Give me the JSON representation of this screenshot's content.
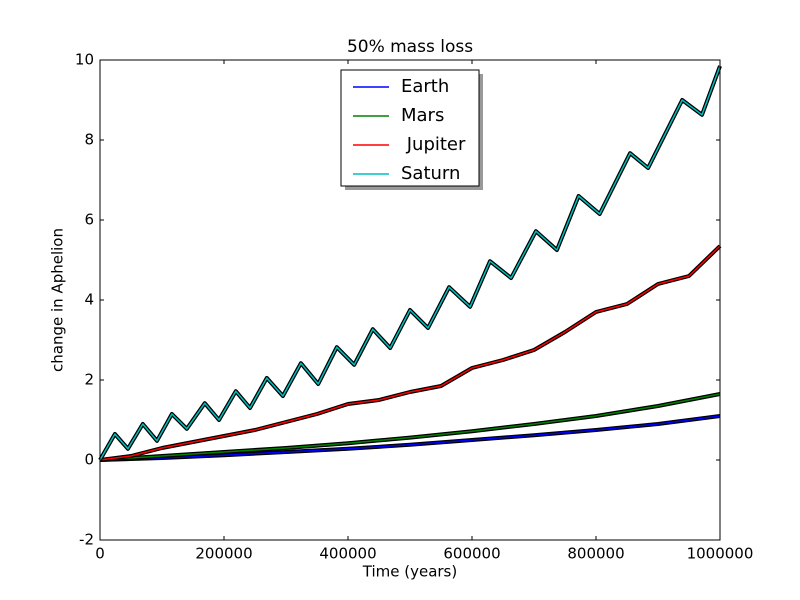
{
  "chart_data": {
    "type": "line",
    "title": "50% mass loss",
    "xlabel": "Time (years)",
    "ylabel": "change in Aphelion",
    "xlim": [
      0,
      1000000
    ],
    "ylim": [
      -2,
      10
    ],
    "xticks": [
      0,
      200000,
      400000,
      600000,
      800000,
      1000000
    ],
    "yticks": [
      -2,
      0,
      2,
      4,
      6,
      8,
      10
    ],
    "legend": "upper center",
    "series": [
      {
        "name": "Earth",
        "color": "#0000ff",
        "x": [
          0,
          100000,
          200000,
          300000,
          400000,
          500000,
          600000,
          700000,
          800000,
          900000,
          1000000
        ],
        "values": [
          0,
          0.05,
          0.12,
          0.2,
          0.28,
          0.38,
          0.5,
          0.62,
          0.75,
          0.9,
          1.1
        ]
      },
      {
        "name": "Mars",
        "color": "#008000",
        "x": [
          0,
          100000,
          200000,
          300000,
          400000,
          500000,
          600000,
          700000,
          800000,
          900000,
          1000000
        ],
        "values": [
          0,
          0.1,
          0.2,
          0.3,
          0.42,
          0.56,
          0.72,
          0.9,
          1.1,
          1.35,
          1.65
        ]
      },
      {
        "name": " Jupiter",
        "color": "#ff0000",
        "x": [
          0,
          50000,
          100000,
          150000,
          200000,
          250000,
          300000,
          350000,
          400000,
          450000,
          500000,
          550000,
          600000,
          650000,
          700000,
          750000,
          800000,
          850000,
          900000,
          950000,
          1000000
        ],
        "values": [
          0,
          0.1,
          0.3,
          0.45,
          0.6,
          0.75,
          0.95,
          1.15,
          1.4,
          1.5,
          1.7,
          1.85,
          2.3,
          2.5,
          2.75,
          3.2,
          3.7,
          3.9,
          4.4,
          4.6,
          5.35
        ]
      },
      {
        "name": "Saturn",
        "color": "#00bfbf",
        "x": [
          0,
          24000,
          45000,
          69000,
          92000,
          116000,
          140000,
          169000,
          192000,
          219000,
          242000,
          269000,
          295000,
          324000,
          352000,
          382000,
          410000,
          440000,
          468000,
          500000,
          529000,
          563000,
          597000,
          629000,
          663000,
          703000,
          737000,
          772000,
          806000,
          855000,
          884000,
          939000,
          971000,
          1000000
        ],
        "values": [
          0,
          0.65,
          0.28,
          0.9,
          0.48,
          1.15,
          0.78,
          1.42,
          1.0,
          1.72,
          1.3,
          2.05,
          1.6,
          2.42,
          1.9,
          2.82,
          2.38,
          3.27,
          2.8,
          3.75,
          3.3,
          4.32,
          3.83,
          4.97,
          4.55,
          5.72,
          5.25,
          6.6,
          6.15,
          7.67,
          7.3,
          9.0,
          8.63,
          9.85
        ]
      }
    ]
  }
}
